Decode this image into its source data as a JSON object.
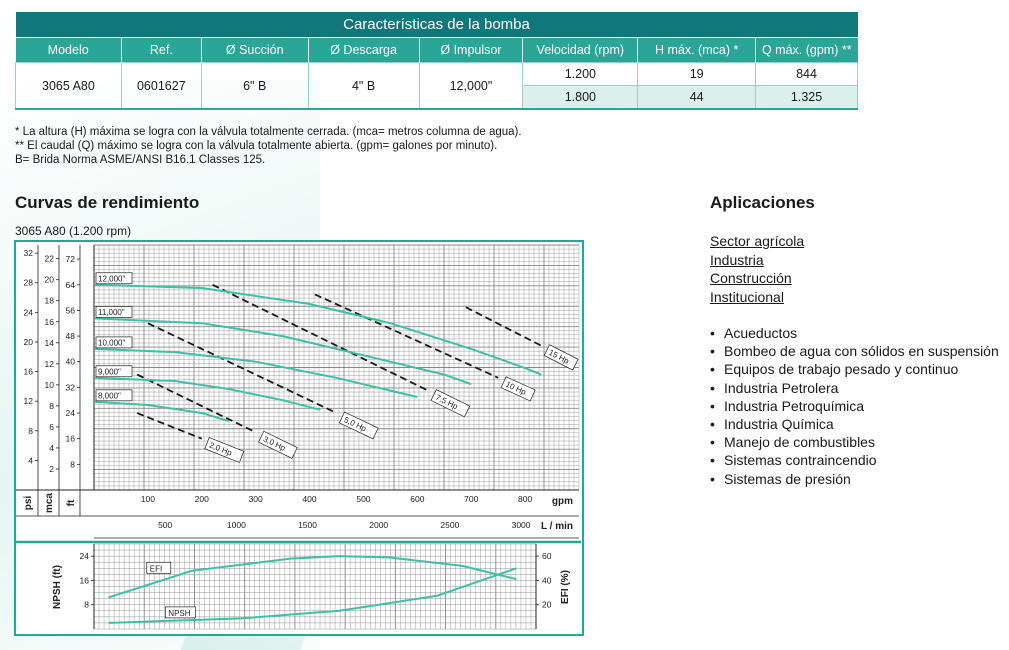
{
  "table": {
    "title": "Características de la bomba",
    "headers": [
      "Modelo",
      "Ref.",
      "Ø Succión",
      "Ø Descarga",
      "Ø Impulsor",
      "Velocidad (rpm)",
      "H máx. (mca) *",
      "Q máx. (gpm) **"
    ],
    "model": "3065 A80",
    "ref": "0601627",
    "suction": "6\" B",
    "discharge": "4\" B",
    "impeller": "12,000\"",
    "rows": [
      {
        "speed": "1.200",
        "h": "19",
        "q": "844"
      },
      {
        "speed": "1.800",
        "h": "44",
        "q": "1.325"
      }
    ],
    "colors": {
      "title_bg": "#10777a",
      "header_bg": "#2aa598",
      "alt_row": "#dbf0ed"
    }
  },
  "notes": [
    "* La altura (H) máxima se logra con la válvula totalmente cerrada. (mca= metros columna de agua).",
    "** El caudal (Q) máximo se logra con la válvula totalmente abierta. (gpm= galones por minuto).",
    "B= Brida Norma ASME/ANSI B16.1 Classes 125."
  ],
  "curves_heading": "Curvas de rendimiento",
  "chart_caption": "3065 A80 (1.200 rpm)",
  "chart_data": {
    "type": "line",
    "axes": {
      "psi": {
        "label": "psi",
        "ticks": [
          4,
          8,
          12,
          16,
          20,
          24,
          28,
          32
        ],
        "range": [
          0,
          33.1
        ]
      },
      "mca": {
        "label": "mca",
        "ticks": [
          2,
          4,
          6,
          8,
          10,
          12,
          14,
          16,
          18,
          20,
          22
        ],
        "range": [
          0,
          23.3
        ]
      },
      "ft": {
        "label": "ft",
        "ticks": [
          8,
          16,
          24,
          32,
          40,
          48,
          56,
          64,
          72
        ],
        "range": [
          0,
          76.4
        ]
      },
      "gpm": {
        "label": "gpm",
        "ticks": [
          100,
          200,
          300,
          400,
          500,
          600,
          700,
          800
        ],
        "range": [
          0,
          900
        ]
      },
      "lmin": {
        "label": "L / min",
        "ticks": [
          500,
          1000,
          1500,
          2000,
          2500,
          3000
        ],
        "range": [
          0,
          3407
        ]
      },
      "npsh": {
        "label": "NPSH (ft)",
        "ticks": [
          8,
          16,
          24
        ],
        "range": [
          0,
          28
        ]
      },
      "efi": {
        "label": "EFI (%)",
        "ticks": [
          20,
          40,
          60
        ],
        "range": [
          0,
          70
        ]
      }
    },
    "head_curves": [
      {
        "name": "12,000\"",
        "x": [
          0,
          200,
          400,
          550,
          700,
          800,
          830
        ],
        "y": [
          64,
          63,
          58,
          52,
          44,
          38,
          36
        ]
      },
      {
        "name": "11,000\"",
        "x": [
          0,
          200,
          350,
          500,
          650,
          700
        ],
        "y": [
          53.5,
          52,
          48,
          42,
          36,
          33
        ]
      },
      {
        "name": "10,000\"",
        "x": [
          0,
          150,
          300,
          450,
          550,
          600
        ],
        "y": [
          44,
          43,
          40,
          35,
          31,
          29
        ]
      },
      {
        "name": "9,000\"",
        "x": [
          0,
          150,
          250,
          350,
          420
        ],
        "y": [
          35,
          34,
          31.5,
          28,
          25
        ]
      },
      {
        "name": "8,000\"",
        "x": [
          0,
          100,
          200,
          250
        ],
        "y": [
          27.5,
          26.5,
          24,
          21.5
        ]
      }
    ],
    "power_lines": [
      {
        "name": "2,0 Hp",
        "x": [
          80,
          200
        ],
        "y": [
          24,
          16
        ]
      },
      {
        "name": "3,0 Hp",
        "x": [
          80,
          300
        ],
        "y": [
          36,
          18
        ]
      },
      {
        "name": "5,0 Hp",
        "x": [
          100,
          450
        ],
        "y": [
          52,
          24
        ]
      },
      {
        "name": "7,5 Hp",
        "x": [
          220,
          620
        ],
        "y": [
          64,
          31
        ]
      },
      {
        "name": "10 Hp",
        "x": [
          410,
          750
        ],
        "y": [
          61,
          35
        ]
      },
      {
        "name": "15 Hp",
        "x": [
          690,
          830
        ],
        "y": [
          57,
          45
        ]
      }
    ],
    "efficiency": {
      "name": "EFI",
      "x": [
        30,
        200,
        400,
        500,
        600,
        750,
        860
      ],
      "y": [
        26,
        48,
        58,
        60,
        59,
        52,
        41
      ]
    },
    "npsh": {
      "name": "NPSH",
      "x": [
        30,
        300,
        500,
        700,
        860
      ],
      "y": [
        2,
        3.5,
        6,
        11,
        20
      ]
    },
    "grid": true
  },
  "apps_heading": "Aplicaciones",
  "app_links": [
    "Sector agrícola",
    "Industria",
    "Construcción",
    "Institucional"
  ],
  "app_list": [
    "Acueductos",
    "Bombeo de agua con sólidos en suspensión",
    "Equipos de trabajo pesado y continuo",
    "Industria Petrolera",
    "Industria Petroquímica",
    "Industria Química",
    "Manejo de combustibles",
    "Sistemas contraincendio",
    "Sistemas de presión"
  ]
}
